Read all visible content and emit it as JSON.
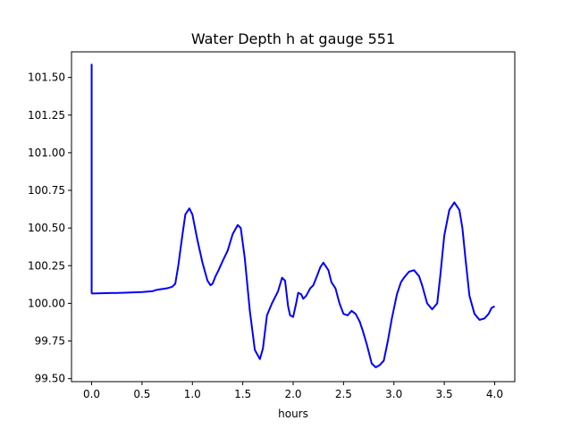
{
  "chart_data": {
    "type": "line",
    "title": "Water Depth h at gauge 551",
    "xlabel": "hours",
    "ylabel": "",
    "xlim": [
      -0.2,
      4.2
    ],
    "ylim": [
      99.48,
      101.67
    ],
    "x_ticks": [
      0.0,
      0.5,
      1.0,
      1.5,
      2.0,
      2.5,
      3.0,
      3.5,
      4.0
    ],
    "x_tick_labels": [
      "0.0",
      "0.5",
      "1.0",
      "1.5",
      "2.0",
      "2.5",
      "3.0",
      "3.5",
      "4.0"
    ],
    "y_ticks": [
      99.5,
      99.75,
      100.0,
      100.25,
      100.5,
      100.75,
      101.0,
      101.25,
      101.5
    ],
    "y_tick_labels": [
      "99.50",
      "99.75",
      "100.00",
      "100.25",
      "100.50",
      "100.75",
      "101.00",
      "101.25",
      "101.50"
    ],
    "grid": false,
    "series": [
      {
        "color": "#0000ff",
        "x": [
          0.0,
          0.0,
          0.005,
          0.3,
          0.5,
          0.6,
          0.65,
          0.7,
          0.75,
          0.8,
          0.83,
          0.86,
          0.9,
          0.93,
          0.97,
          1.0,
          1.05,
          1.1,
          1.15,
          1.18,
          1.2,
          1.23,
          1.26,
          1.3,
          1.35,
          1.4,
          1.45,
          1.48,
          1.52,
          1.57,
          1.62,
          1.67,
          1.7,
          1.74,
          1.79,
          1.85,
          1.89,
          1.92,
          1.95,
          1.97,
          2.0,
          2.03,
          2.05,
          2.08,
          2.1,
          2.13,
          2.17,
          2.2,
          2.23,
          2.27,
          2.3,
          2.35,
          2.38,
          2.42,
          2.46,
          2.5,
          2.54,
          2.58,
          2.62,
          2.66,
          2.69,
          2.73,
          2.78,
          2.82,
          2.86,
          2.9,
          2.94,
          2.98,
          3.03,
          3.07,
          3.1,
          3.15,
          3.2,
          3.25,
          3.28,
          3.33,
          3.38,
          3.43,
          3.46,
          3.5,
          3.55,
          3.6,
          3.65,
          3.68,
          3.71,
          3.75,
          3.8,
          3.85,
          3.9,
          3.94,
          3.97,
          4.0
        ],
        "y": [
          101.59,
          100.07,
          100.065,
          100.07,
          100.075,
          100.08,
          100.09,
          100.095,
          100.1,
          100.11,
          100.13,
          100.25,
          100.45,
          100.59,
          100.63,
          100.59,
          100.42,
          100.27,
          100.15,
          100.12,
          100.13,
          100.18,
          100.22,
          100.28,
          100.35,
          100.46,
          100.52,
          100.5,
          100.3,
          99.95,
          99.69,
          99.63,
          99.7,
          99.92,
          100.0,
          100.08,
          100.17,
          100.15,
          99.98,
          99.92,
          99.91,
          100.0,
          100.07,
          100.06,
          100.03,
          100.05,
          100.1,
          100.12,
          100.17,
          100.24,
          100.27,
          100.22,
          100.14,
          100.1,
          100.0,
          99.93,
          99.92,
          99.95,
          99.93,
          99.88,
          99.82,
          99.73,
          99.6,
          99.575,
          99.59,
          99.62,
          99.75,
          99.9,
          100.06,
          100.14,
          100.17,
          100.21,
          100.22,
          100.18,
          100.12,
          100.0,
          99.96,
          100.0,
          100.18,
          100.45,
          100.62,
          100.67,
          100.62,
          100.5,
          100.3,
          100.05,
          99.93,
          99.89,
          99.9,
          99.93,
          99.97,
          99.98
        ]
      }
    ]
  }
}
